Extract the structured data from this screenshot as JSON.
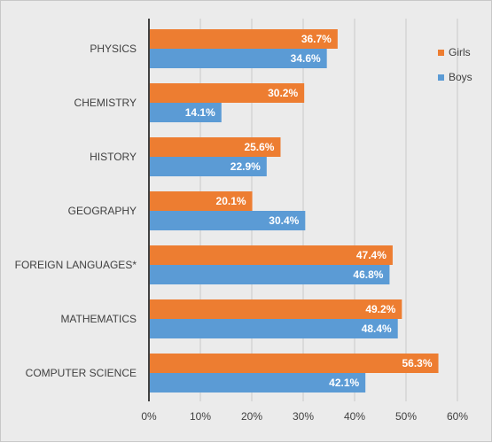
{
  "chart_data": {
    "type": "bar",
    "orientation": "horizontal",
    "categories": [
      "PHYSICS",
      "CHEMISTRY",
      "HISTORY",
      "GEOGRAPHY",
      "FOREIGN LANGUAGES*",
      "MATHEMATICS",
      "COMPUTER SCIENCE"
    ],
    "series": [
      {
        "name": "Girls",
        "color": "#ed7d31",
        "values": [
          36.7,
          30.2,
          25.6,
          20.1,
          47.4,
          49.2,
          56.3
        ],
        "labels": [
          "36.7%",
          "30.2%",
          "25.6%",
          "20.1%",
          "47.4%",
          "49.2%",
          "56.3%"
        ]
      },
      {
        "name": "Boys",
        "color": "#5b9bd5",
        "values": [
          34.6,
          14.1,
          22.9,
          30.4,
          46.8,
          48.4,
          42.1
        ],
        "labels": [
          "34.6%",
          "14.1%",
          "22.9%",
          "30.4%",
          "46.8%",
          "48.4%",
          "42.1%"
        ]
      }
    ],
    "xlim": [
      0,
      60
    ],
    "xticks": [
      0,
      10,
      20,
      30,
      40,
      50,
      60
    ],
    "xtick_labels": [
      "0%",
      "10%",
      "20%",
      "30%",
      "40%",
      "50%",
      "60%"
    ],
    "grid": true,
    "legend_position": "top-right",
    "title": "",
    "xlabel": "",
    "ylabel": ""
  }
}
